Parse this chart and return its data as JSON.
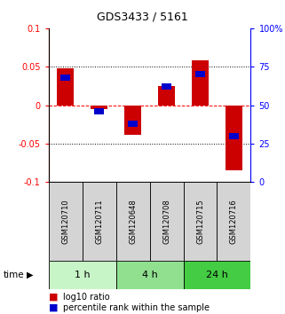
{
  "title": "GDS3433 / 5161",
  "samples": [
    "GSM120710",
    "GSM120711",
    "GSM120648",
    "GSM120708",
    "GSM120715",
    "GSM120716"
  ],
  "log10_ratio": [
    0.048,
    -0.005,
    -0.038,
    0.025,
    0.058,
    -0.085
  ],
  "percentile_rank": [
    68,
    46,
    38,
    62,
    70,
    30
  ],
  "groups": [
    {
      "label": "1 h",
      "indices": [
        0,
        1
      ],
      "color": "#c8f5c8"
    },
    {
      "label": "4 h",
      "indices": [
        2,
        3
      ],
      "color": "#90e090"
    },
    {
      "label": "24 h",
      "indices": [
        4,
        5
      ],
      "color": "#44cc44"
    }
  ],
  "ylim_left": [
    -0.1,
    0.1
  ],
  "ylim_right": [
    0,
    100
  ],
  "bar_color_red": "#cc0000",
  "bar_color_blue": "#0000cc",
  "bar_width": 0.5,
  "background_color": "#ffffff",
  "title_fontsize": 9,
  "tick_fontsize": 7,
  "sample_fontsize": 6,
  "group_fontsize": 8
}
